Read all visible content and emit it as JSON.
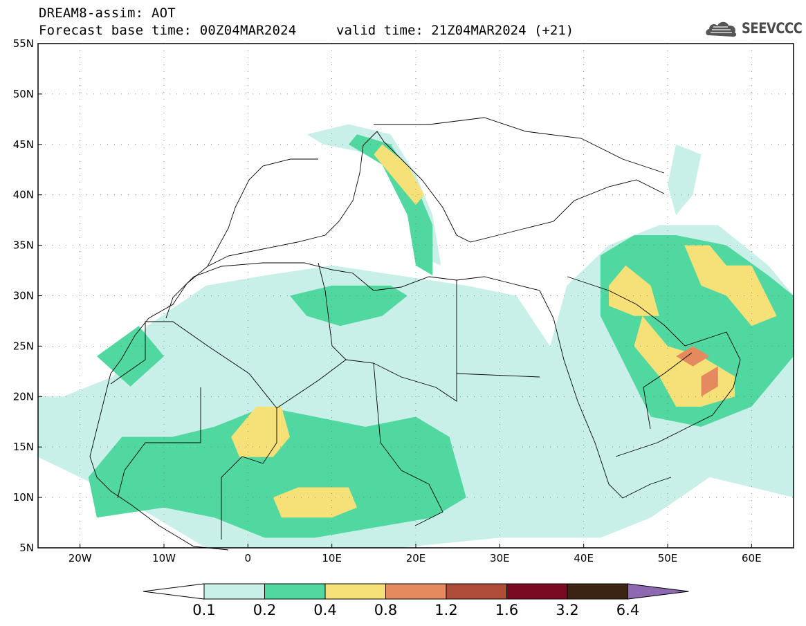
{
  "header": {
    "line1": "DREAM8-assim: AOT",
    "line2": "Forecast base time: 00Z04MAR2024",
    "valid": "valid time: 21Z04MAR2024 (+21)"
  },
  "logo": {
    "text": "SEEVCCC",
    "icon": "cloud-icon"
  },
  "map": {
    "lon_range": [
      -25,
      65
    ],
    "lat_range": [
      5,
      55
    ],
    "lon_ticks": [
      {
        "value": -20,
        "label": "20W"
      },
      {
        "value": -10,
        "label": "10W"
      },
      {
        "value": 0,
        "label": "0"
      },
      {
        "value": 10,
        "label": "10E"
      },
      {
        "value": 20,
        "label": "20E"
      },
      {
        "value": 30,
        "label": "30E"
      },
      {
        "value": 40,
        "label": "40E"
      },
      {
        "value": 50,
        "label": "50E"
      },
      {
        "value": 60,
        "label": "60E"
      }
    ],
    "lat_ticks": [
      {
        "value": 5,
        "label": "5N"
      },
      {
        "value": 10,
        "label": "10N"
      },
      {
        "value": 15,
        "label": "15N"
      },
      {
        "value": 20,
        "label": "20N"
      },
      {
        "value": 25,
        "label": "25N"
      },
      {
        "value": 30,
        "label": "30N"
      },
      {
        "value": 35,
        "label": "35N"
      },
      {
        "value": 40,
        "label": "40N"
      },
      {
        "value": 45,
        "label": "45N"
      },
      {
        "value": 50,
        "label": "50N"
      },
      {
        "value": 55,
        "label": "55N"
      }
    ],
    "gridlines": "dotted"
  },
  "colorbar": {
    "labels": [
      "0.1",
      "0.2",
      "0.4",
      "0.8",
      "1.2",
      "1.6",
      "3.2",
      "6.4"
    ],
    "colors": [
      "#ffffff",
      "#c8f0e8",
      "#50d8a0",
      "#f5e178",
      "#e58a5e",
      "#b04c3a",
      "#7a0a22",
      "#3c2414",
      "#8e68b0"
    ]
  },
  "aot_field": [
    {
      "level": 1,
      "label": "0.1",
      "color": "#c8f0e8",
      "points": [
        [
          -22,
          20
        ],
        [
          -16,
          22
        ],
        [
          -12,
          27
        ],
        [
          -5,
          31
        ],
        [
          2,
          32
        ],
        [
          10,
          33
        ],
        [
          18,
          32
        ],
        [
          26,
          31
        ],
        [
          32,
          30
        ],
        [
          36,
          25
        ],
        [
          38,
          31
        ],
        [
          43,
          35
        ],
        [
          49,
          37
        ],
        [
          56,
          37
        ],
        [
          62,
          33
        ],
        [
          65,
          30
        ],
        [
          65,
          10
        ],
        [
          55,
          12
        ],
        [
          48,
          8
        ],
        [
          42,
          6
        ],
        [
          30,
          6
        ],
        [
          18,
          5
        ],
        [
          5,
          5
        ],
        [
          -5,
          5
        ],
        [
          -15,
          10
        ],
        [
          -25,
          14
        ],
        [
          -25,
          20
        ]
      ]
    },
    {
      "level": 1,
      "label": "0.1",
      "color": "#c8f0e8",
      "points": [
        [
          7,
          46
        ],
        [
          12,
          47
        ],
        [
          17,
          46
        ],
        [
          20,
          42
        ],
        [
          22,
          38
        ],
        [
          23,
          33
        ],
        [
          20,
          34
        ],
        [
          19,
          40
        ],
        [
          15,
          44
        ],
        [
          9,
          45
        ]
      ]
    },
    {
      "level": 1,
      "label": "0.1",
      "color": "#c8f0e8",
      "points": [
        [
          51,
          45
        ],
        [
          54,
          44
        ],
        [
          53,
          40
        ],
        [
          51,
          38
        ],
        [
          50,
          41
        ]
      ]
    },
    {
      "level": 2,
      "label": "0.2",
      "color": "#50d8a0",
      "points": [
        [
          -19,
          12
        ],
        [
          -15,
          16
        ],
        [
          -9,
          16
        ],
        [
          -4,
          17
        ],
        [
          2,
          19
        ],
        [
          8,
          18
        ],
        [
          14,
          17
        ],
        [
          20,
          18
        ],
        [
          24,
          16
        ],
        [
          26,
          10
        ],
        [
          22,
          8
        ],
        [
          15,
          7
        ],
        [
          8,
          6
        ],
        [
          2,
          6
        ],
        [
          -4,
          8
        ],
        [
          -10,
          9
        ],
        [
          -18,
          8
        ]
      ]
    },
    {
      "level": 2,
      "label": "0.2",
      "color": "#50d8a0",
      "points": [
        [
          42,
          34
        ],
        [
          46,
          36
        ],
        [
          51,
          36
        ],
        [
          57,
          35
        ],
        [
          62,
          32
        ],
        [
          65,
          30
        ],
        [
          65,
          24
        ],
        [
          60,
          19
        ],
        [
          54,
          17
        ],
        [
          48,
          18
        ],
        [
          45,
          23
        ],
        [
          42,
          28
        ]
      ]
    },
    {
      "level": 2,
      "label": "0.2",
      "color": "#50d8a0",
      "points": [
        [
          13,
          46
        ],
        [
          17,
          45
        ],
        [
          20,
          41
        ],
        [
          22,
          37
        ],
        [
          22,
          32
        ],
        [
          20,
          33
        ],
        [
          19,
          38
        ],
        [
          16,
          43
        ],
        [
          12,
          45
        ]
      ]
    },
    {
      "level": 2,
      "label": "0.2",
      "color": "#50d8a0",
      "points": [
        [
          5,
          30
        ],
        [
          10,
          31
        ],
        [
          17,
          31
        ],
        [
          19,
          30
        ],
        [
          16,
          28
        ],
        [
          11,
          27
        ],
        [
          7,
          28
        ]
      ]
    },
    {
      "level": 2,
      "label": "0.2",
      "color": "#50d8a0",
      "points": [
        [
          -18,
          24
        ],
        [
          -13,
          27
        ],
        [
          -10,
          24
        ],
        [
          -14,
          21
        ]
      ]
    },
    {
      "level": 3,
      "label": "0.4",
      "color": "#f5e178",
      "points": [
        [
          -2,
          16
        ],
        [
          1,
          19
        ],
        [
          4,
          19
        ],
        [
          5,
          16
        ],
        [
          3,
          14
        ],
        [
          -1,
          14
        ]
      ]
    },
    {
      "level": 3,
      "label": "0.4",
      "color": "#f5e178",
      "points": [
        [
          3,
          10
        ],
        [
          6,
          11
        ],
        [
          12,
          11
        ],
        [
          13,
          9
        ],
        [
          10,
          8
        ],
        [
          4,
          8
        ]
      ]
    },
    {
      "level": 3,
      "label": "0.4",
      "color": "#f5e178",
      "points": [
        [
          16,
          45
        ],
        [
          19,
          43
        ],
        [
          21,
          40
        ],
        [
          20,
          39
        ],
        [
          18,
          41
        ],
        [
          15,
          44
        ]
      ]
    },
    {
      "level": 3,
      "label": "0.4",
      "color": "#f5e178",
      "points": [
        [
          47,
          28
        ],
        [
          50,
          25
        ],
        [
          54,
          24
        ],
        [
          58,
          22
        ],
        [
          58,
          20
        ],
        [
          54,
          19
        ],
        [
          51,
          19
        ],
        [
          49,
          22
        ],
        [
          46,
          25
        ]
      ]
    },
    {
      "level": 3,
      "label": "0.4",
      "color": "#f5e178",
      "points": [
        [
          43,
          31
        ],
        [
          45,
          33
        ],
        [
          48,
          31
        ],
        [
          49,
          28
        ],
        [
          46,
          28
        ],
        [
          43,
          29
        ]
      ]
    },
    {
      "level": 3,
      "label": "0.4",
      "color": "#f5e178",
      "points": [
        [
          52,
          35
        ],
        [
          55,
          35
        ],
        [
          57,
          33
        ],
        [
          60,
          33
        ],
        [
          63,
          28
        ],
        [
          60,
          27
        ],
        [
          57,
          30
        ],
        [
          54,
          31
        ]
      ]
    },
    {
      "level": 4,
      "label": "0.8",
      "color": "#e58a5e",
      "points": [
        [
          51,
          24
        ],
        [
          53,
          25
        ],
        [
          55,
          24
        ],
        [
          53,
          23
        ]
      ]
    },
    {
      "level": 4,
      "label": "0.8",
      "color": "#e58a5e",
      "points": [
        [
          54,
          22
        ],
        [
          56,
          23
        ],
        [
          56,
          21
        ],
        [
          54,
          20
        ]
      ]
    }
  ]
}
